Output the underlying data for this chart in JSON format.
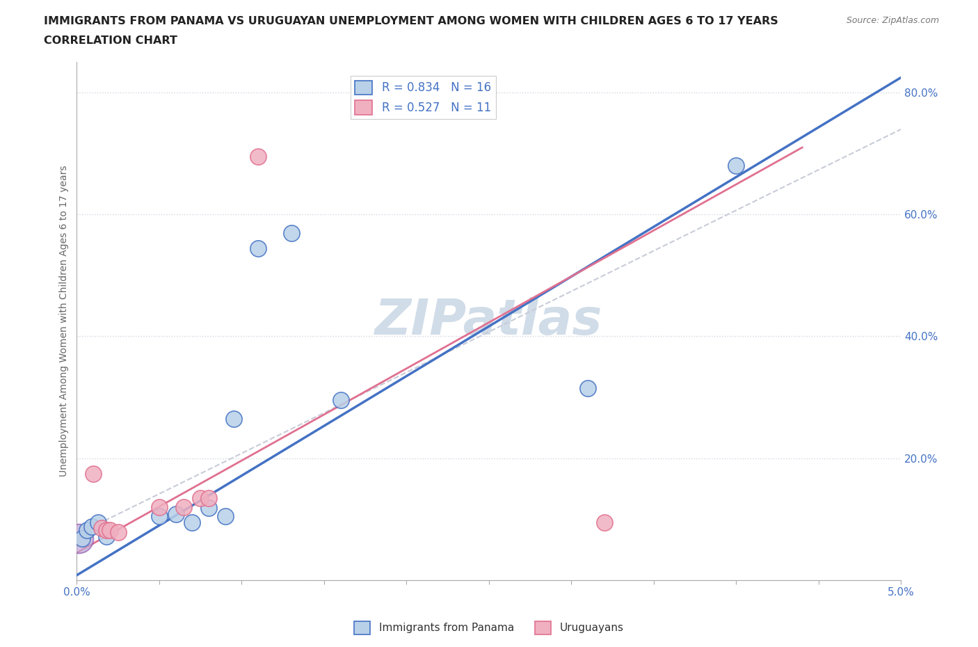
{
  "title_line1": "IMMIGRANTS FROM PANAMA VS URUGUAYAN UNEMPLOYMENT AMONG WOMEN WITH CHILDREN AGES 6 TO 17 YEARS",
  "title_line2": "CORRELATION CHART",
  "source_text": "Source: ZipAtlas.com",
  "ylabel": "Unemployment Among Women with Children Ages 6 to 17 years",
  "xlim": [
    0.0,
    0.05
  ],
  "ylim": [
    0.0,
    0.85
  ],
  "xticks": [
    0.0,
    0.005,
    0.01,
    0.015,
    0.02,
    0.025,
    0.03,
    0.035,
    0.04,
    0.045,
    0.05
  ],
  "xticklabels": [
    "0.0%",
    "",
    "",
    "",
    "",
    "",
    "",
    "",
    "",
    "",
    "5.0%"
  ],
  "yticks": [
    0.0,
    0.2,
    0.4,
    0.6,
    0.8
  ],
  "yticklabels": [
    "",
    "20.0%",
    "40.0%",
    "60.0%",
    "80.0%"
  ],
  "blue_fill": "#b8d0e8",
  "blue_edge": "#4472c4",
  "pink_fill": "#f0b0c0",
  "pink_edge": "#e07090",
  "purple_fill": "#c0a8d8",
  "purple_edge": "#9060b0",
  "blue_line_color": "#4472c4",
  "pink_line_color": "#e07090",
  "dash_color": "#c8ccd8",
  "watermark_color": "#d0dce8",
  "legend_r1": "R = 0.834   N = 16",
  "legend_r2": "R = 0.527   N = 11",
  "legend_text_color": "#4472c4",
  "grid_color": "#d0d4e0",
  "blue_scatter": [
    [
      0.0003,
      0.068
    ],
    [
      0.0006,
      0.082
    ],
    [
      0.0009,
      0.088
    ],
    [
      0.0013,
      0.095
    ],
    [
      0.0018,
      0.072
    ],
    [
      0.005,
      0.105
    ],
    [
      0.006,
      0.108
    ],
    [
      0.007,
      0.095
    ],
    [
      0.008,
      0.118
    ],
    [
      0.009,
      0.105
    ],
    [
      0.0095,
      0.265
    ],
    [
      0.011,
      0.545
    ],
    [
      0.013,
      0.57
    ],
    [
      0.016,
      0.295
    ],
    [
      0.031,
      0.315
    ],
    [
      0.04,
      0.68
    ]
  ],
  "pink_scatter": [
    [
      0.001,
      0.175
    ],
    [
      0.0015,
      0.085
    ],
    [
      0.0018,
      0.082
    ],
    [
      0.002,
      0.082
    ],
    [
      0.0025,
      0.078
    ],
    [
      0.005,
      0.12
    ],
    [
      0.0065,
      0.12
    ],
    [
      0.0075,
      0.135
    ],
    [
      0.008,
      0.135
    ],
    [
      0.011,
      0.695
    ],
    [
      0.032,
      0.095
    ]
  ],
  "large_purple": [
    0.0001,
    0.068
  ],
  "blue_line_x": [
    0.0,
    0.05
  ],
  "blue_line_y": [
    0.008,
    0.825
  ],
  "pink_line_x": [
    0.0,
    0.044
  ],
  "pink_line_y": [
    0.045,
    0.71
  ],
  "dash_line_x": [
    0.0,
    0.05
  ],
  "dash_line_y": [
    0.075,
    0.74
  ]
}
